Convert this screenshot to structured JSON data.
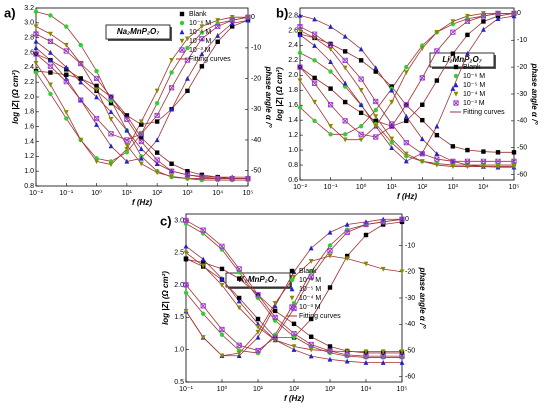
{
  "chart_data": [
    {
      "type": "bode",
      "panel": "a)",
      "label": "Na₂MnP₂O₇",
      "xlabel": "f (Hz)",
      "ylabel": "log |Z| (Ω cm²)",
      "y2label": "phase angle α /°",
      "log_x": true,
      "legend": "upper right",
      "fit_label": "Fitting curves",
      "fit_color": "#a03232",
      "x": [
        0.01,
        0.03,
        0.1,
        0.3,
        1,
        3,
        10,
        30,
        100,
        300,
        1000,
        3000,
        10000,
        30000,
        100000
      ],
      "xlim": [
        0.01,
        100000
      ],
      "xticks": [
        {
          "value": 0.01,
          "label": "10⁻²"
        },
        {
          "value": 0.1,
          "label": "10⁻¹"
        },
        {
          "value": 1,
          "label": "10⁰"
        },
        {
          "value": 10,
          "label": "10¹"
        },
        {
          "value": 100,
          "label": "10²"
        },
        {
          "value": 1000,
          "label": "10³"
        },
        {
          "value": 10000,
          "label": "10⁴"
        },
        {
          "value": 100000,
          "label": "10⁵"
        }
      ],
      "ylim": [
        0.8,
        3.2
      ],
      "yticks": [
        0.8,
        {
          "value": 1,
          "label": "1.0"
        },
        1.2,
        1.4,
        1.6,
        1.8,
        {
          "value": 2,
          "label": "2.0"
        },
        2.2,
        2.4,
        2.6,
        2.8,
        {
          "value": 3,
          "label": "3.0"
        },
        3.2
      ],
      "y2lim": [
        -55,
        3
      ],
      "y2ticks": [
        0,
        -10,
        -20,
        -30,
        -40,
        -50
      ],
      "series": [
        {
          "name": "Blank",
          "color": "#000000",
          "marker": "square",
          "values": [
            2.35,
            2.33,
            2.3,
            2.25,
            2.15,
            2.0,
            1.75,
            1.45,
            1.25,
            1.1,
            1.0,
            0.95,
            0.92,
            0.9,
            0.9
          ],
          "phase": [
            -12,
            -14,
            -17,
            -20,
            -24,
            -28,
            -32,
            -35,
            -34,
            -30,
            -24,
            -16,
            -8,
            -3,
            -1
          ]
        },
        {
          "name": "10⁻⁶ M",
          "color": "#33cc33",
          "marker": "circle",
          "values": [
            3.15,
            3.1,
            2.95,
            2.7,
            2.35,
            1.95,
            1.55,
            1.2,
            1.0,
            0.92,
            0.9,
            0.88,
            0.88,
            0.88,
            0.88
          ],
          "phase": [
            -18,
            -25,
            -33,
            -40,
            -46,
            -47,
            -44,
            -38,
            -28,
            -18,
            -10,
            -5,
            -2,
            -1,
            0
          ]
        },
        {
          "name": "10⁻⁵ M",
          "color": "#2222cc",
          "marker": "tri-up",
          "values": [
            2.75,
            2.6,
            2.4,
            2.2,
            2.0,
            1.8,
            1.55,
            1.3,
            1.1,
            1.0,
            0.95,
            0.93,
            0.92,
            0.92,
            0.92
          ],
          "phase": [
            -10,
            -14,
            -20,
            -27,
            -35,
            -42,
            -47,
            -46,
            -40,
            -30,
            -20,
            -12,
            -6,
            -2,
            -1
          ]
        },
        {
          "name": "10⁻⁴ M",
          "color": "#8a8a00",
          "marker": "tri-down",
          "values": [
            2.95,
            2.85,
            2.7,
            2.45,
            2.1,
            1.7,
            1.35,
            1.1,
            0.98,
            0.93,
            0.9,
            0.9,
            0.9,
            0.9,
            0.9
          ],
          "phase": [
            -15,
            -22,
            -31,
            -40,
            -47,
            -48,
            -43,
            -34,
            -24,
            -14,
            -7,
            -3,
            -1,
            0,
            0
          ]
        },
        {
          "name": "10⁻³ M",
          "color": "#9933cc",
          "marker": "xsquare",
          "values": [
            2.85,
            2.75,
            2.62,
            2.45,
            2.25,
            2.0,
            1.7,
            1.4,
            1.15,
            1.0,
            0.95,
            0.92,
            0.9,
            0.9,
            0.9
          ],
          "phase": [
            -12,
            -16,
            -21,
            -27,
            -33,
            -38,
            -40,
            -38,
            -32,
            -23,
            -14,
            -7,
            -3,
            -1,
            0
          ]
        }
      ]
    },
    {
      "type": "bode",
      "panel": "b)",
      "label": "Li₂MnP₂O₇",
      "xlabel": "f (Hz)",
      "ylabel": "log |Z| (Ω cm²)",
      "y2label": "phase angle α /°",
      "log_x": true,
      "legend": "center right",
      "fit_label": "Fitting curves",
      "fit_color": "#a03232",
      "x": [
        0.01,
        0.03,
        0.1,
        0.3,
        1,
        3,
        10,
        30,
        100,
        300,
        1000,
        3000,
        10000,
        30000,
        100000
      ],
      "xlim": [
        0.01,
        100000
      ],
      "xticks": [
        {
          "value": 0.01,
          "label": "10⁻²"
        },
        {
          "value": 0.1,
          "label": "10⁻¹"
        },
        {
          "value": 1,
          "label": "10⁰"
        },
        {
          "value": 10,
          "label": "10¹"
        },
        {
          "value": 100,
          "label": "10²"
        },
        {
          "value": 1000,
          "label": "10³"
        },
        {
          "value": 10000,
          "label": "10⁴"
        },
        {
          "value": 100000,
          "label": "10⁵"
        }
      ],
      "ylim": [
        0.6,
        2.9
      ],
      "yticks": [
        0.6,
        0.8,
        {
          "value": 1,
          "label": "1.0"
        },
        1.2,
        1.4,
        1.6,
        1.8,
        {
          "value": 2,
          "label": "2.0"
        },
        2.2,
        2.4,
        2.6,
        2.8
      ],
      "y2lim": [
        -62,
        2
      ],
      "y2ticks": [
        0,
        -10,
        -20,
        -30,
        -40,
        -50,
        -60
      ],
      "series": [
        {
          "name": "Blank",
          "color": "#000000",
          "marker": "square",
          "values": [
            2.55,
            2.5,
            2.42,
            2.32,
            2.2,
            2.05,
            1.85,
            1.6,
            1.4,
            1.2,
            1.05,
            1.0,
            0.98,
            0.97,
            0.97
          ],
          "phase": [
            -20,
            -24,
            -28,
            -33,
            -37,
            -40,
            -42,
            -40,
            -34,
            -25,
            -15,
            -8,
            -3,
            -1,
            0
          ]
        },
        {
          "name": "10⁻⁶ M",
          "color": "#33cc33",
          "marker": "circle",
          "values": [
            2.3,
            2.2,
            2.05,
            1.85,
            1.6,
            1.35,
            1.1,
            0.92,
            0.85,
            0.82,
            0.8,
            0.8,
            0.8,
            0.8,
            0.8
          ],
          "phase": [
            -35,
            -40,
            -45,
            -45,
            -42,
            -36,
            -28,
            -20,
            -12,
            -7,
            -4,
            -2,
            -1,
            0,
            0
          ]
        },
        {
          "name": "10⁻⁵ M",
          "color": "#2222cc",
          "marker": "tri-up",
          "values": [
            2.8,
            2.75,
            2.65,
            2.52,
            2.35,
            2.1,
            1.8,
            1.45,
            1.15,
            0.95,
            0.85,
            0.8,
            0.78,
            0.77,
            0.77
          ],
          "phase": [
            -8,
            -12,
            -18,
            -26,
            -34,
            -42,
            -50,
            -55,
            -52,
            -42,
            -28,
            -15,
            -6,
            -2,
            -1
          ]
        },
        {
          "name": "10⁻⁴ M",
          "color": "#8a8a00",
          "marker": "tri-down",
          "values": [
            2.6,
            2.5,
            2.35,
            2.1,
            1.8,
            1.45,
            1.15,
            0.95,
            0.85,
            0.8,
            0.78,
            0.78,
            0.78,
            0.78,
            0.78
          ],
          "phase": [
            -25,
            -33,
            -42,
            -47,
            -47,
            -42,
            -33,
            -22,
            -13,
            -7,
            -3,
            -1,
            0,
            0,
            0
          ]
        },
        {
          "name": "10⁻³ M",
          "color": "#9933cc",
          "marker": "xsquare",
          "values": [
            2.65,
            2.55,
            2.4,
            2.2,
            1.95,
            1.65,
            1.35,
            1.1,
            0.95,
            0.88,
            0.85,
            0.85,
            0.85,
            0.85,
            0.85
          ],
          "phase": [
            -20,
            -26,
            -34,
            -40,
            -45,
            -46,
            -42,
            -34,
            -24,
            -14,
            -7,
            -3,
            -1,
            0,
            0
          ]
        }
      ]
    },
    {
      "type": "bode",
      "panel": "c)",
      "label": "K₂MnP₂O₇",
      "xlabel": "f (Hz)",
      "ylabel": "log |Z| (Ω cm²)",
      "y2label": "phase angle α /°",
      "log_x": true,
      "legend": "center",
      "fit_label": "Fitting curves",
      "fit_color": "#a03232",
      "x": [
        0.1,
        0.3,
        1,
        3,
        10,
        30,
        100,
        300,
        1000,
        3000,
        10000,
        30000,
        100000
      ],
      "xlim": [
        0.1,
        100000
      ],
      "xticks": [
        {
          "value": 0.1,
          "label": "10⁻¹"
        },
        {
          "value": 1,
          "label": "10⁰"
        },
        {
          "value": 10,
          "label": "10¹"
        },
        {
          "value": 100,
          "label": "10²"
        },
        {
          "value": 1000,
          "label": "10³"
        },
        {
          "value": 10000,
          "label": "10⁴"
        },
        {
          "value": 100000,
          "label": "10⁵"
        }
      ],
      "ylim": [
        0.5,
        3.1
      ],
      "yticks": [
        0.5,
        {
          "value": 1,
          "label": "1.0"
        },
        1.5,
        {
          "value": 2,
          "label": "2.0"
        },
        2.5,
        {
          "value": 3,
          "label": "3.0"
        }
      ],
      "y2lim": [
        -62,
        2
      ],
      "y2ticks": [
        0,
        -10,
        -20,
        -30,
        -40,
        -50,
        -60
      ],
      "series": [
        {
          "name": "Blank",
          "color": "#000000",
          "marker": "square",
          "values": [
            2.4,
            2.35,
            2.25,
            2.1,
            1.85,
            1.6,
            1.4,
            1.2,
            1.05,
            0.98,
            0.95,
            0.95,
            0.95
          ],
          "phase": [
            -15,
            -18,
            -23,
            -30,
            -38,
            -45,
            -45,
            -38,
            -26,
            -14,
            -6,
            -2,
            -1
          ]
        },
        {
          "name": "10⁻⁶ M",
          "color": "#33cc33",
          "marker": "circle",
          "values": [
            2.95,
            2.8,
            2.55,
            2.2,
            1.8,
            1.45,
            1.2,
            1.05,
            0.95,
            0.9,
            0.88,
            0.88,
            0.88
          ],
          "phase": [
            -28,
            -36,
            -44,
            -50,
            -51,
            -44,
            -32,
            -20,
            -10,
            -4,
            -2,
            -1,
            0
          ]
        },
        {
          "name": "10⁻⁵ M",
          "color": "#2222cc",
          "marker": "tri-up",
          "values": [
            2.6,
            2.4,
            2.1,
            1.75,
            1.4,
            1.15,
            1.0,
            0.9,
            0.85,
            0.82,
            0.8,
            0.8,
            0.8
          ],
          "phase": [
            -35,
            -45,
            -52,
            -52,
            -45,
            -33,
            -20,
            -11,
            -5,
            -2,
            -1,
            0,
            0
          ]
        },
        {
          "name": "10⁻⁴ M",
          "color": "#8a8a00",
          "marker": "tri-down",
          "values": [
            2.5,
            2.3,
            2.0,
            1.65,
            1.35,
            1.15,
            1.05,
            1.0,
            0.98,
            0.97,
            0.97,
            0.97,
            0.97
          ],
          "phase": [
            -35,
            -45,
            -52,
            -51,
            -43,
            -32,
            -22,
            -16,
            -14,
            -15,
            -17,
            -19,
            -20
          ]
        },
        {
          "name": "10⁻³ M",
          "color": "#9933cc",
          "marker": "xsquare",
          "values": [
            3.0,
            2.85,
            2.6,
            2.25,
            1.85,
            1.5,
            1.25,
            1.08,
            0.98,
            0.92,
            0.9,
            0.9,
            0.9
          ],
          "phase": [
            -25,
            -33,
            -42,
            -48,
            -50,
            -45,
            -34,
            -22,
            -12,
            -5,
            -2,
            -1,
            0
          ]
        }
      ]
    }
  ]
}
